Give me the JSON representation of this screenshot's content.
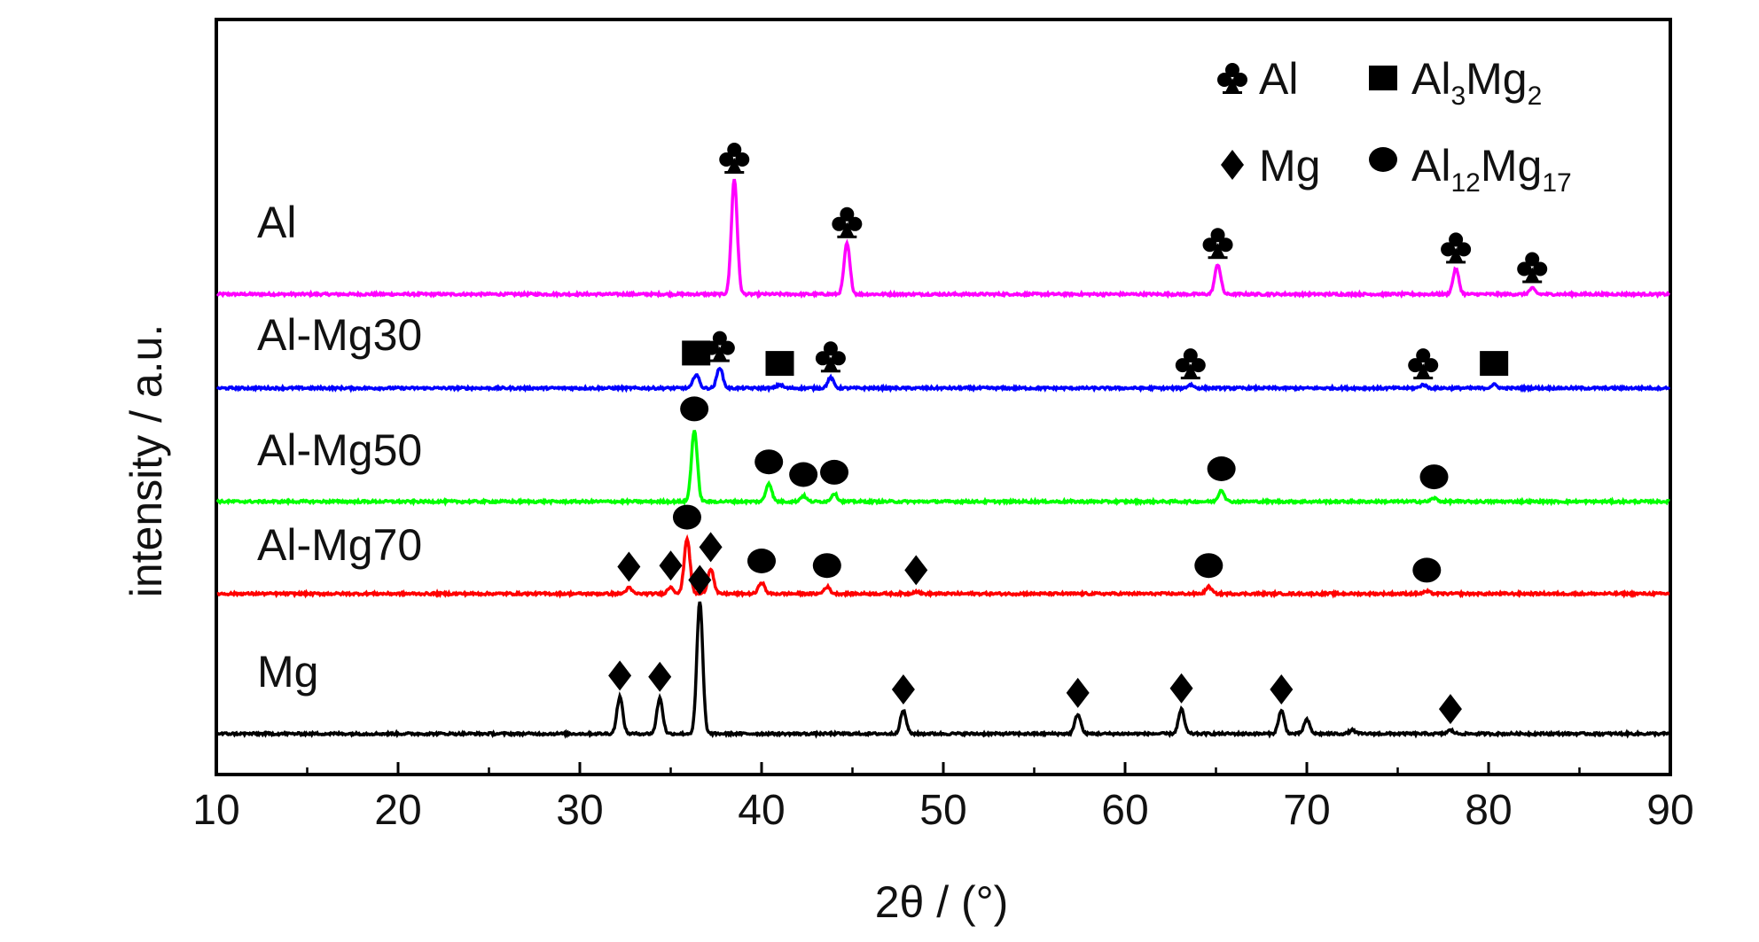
{
  "chart_data": {
    "type": "line",
    "xlabel": "2θ / (°)",
    "ylabel": "intensity / a.u.",
    "xlim": [
      10,
      90
    ],
    "xticks": [
      10,
      20,
      30,
      40,
      50,
      60,
      70,
      80,
      90
    ],
    "grid": false,
    "legend_position": "top-right",
    "legend": [
      {
        "symbol": "club",
        "label": "Al",
        "sub": ""
      },
      {
        "symbol": "square",
        "label": "Al",
        "sub_parts": [
          "3",
          "2"
        ],
        "label2": "Mg"
      },
      {
        "symbol": "diamond",
        "label": "Mg",
        "sub": ""
      },
      {
        "symbol": "circle",
        "label": "Al",
        "sub_parts": [
          "12",
          "17"
        ],
        "label2": "Mg"
      }
    ],
    "series": [
      {
        "name": "Al",
        "color": "#ff00ff",
        "peaks": [
          {
            "x": 38.5,
            "h": 1.0,
            "mark": "club"
          },
          {
            "x": 44.7,
            "h": 0.44,
            "mark": "club"
          },
          {
            "x": 65.1,
            "h": 0.26,
            "mark": "club"
          },
          {
            "x": 78.2,
            "h": 0.22,
            "mark": "club"
          },
          {
            "x": 82.4,
            "h": 0.05,
            "mark": "club"
          }
        ]
      },
      {
        "name": "Al-Mg30",
        "color": "#0000ff",
        "peaks": [
          {
            "x": 36.4,
            "h": 0.12,
            "mark": "square"
          },
          {
            "x": 37.7,
            "h": 0.18,
            "mark": "club"
          },
          {
            "x": 41.0,
            "h": 0.03,
            "mark": "square"
          },
          {
            "x": 43.8,
            "h": 0.09,
            "mark": "club"
          },
          {
            "x": 63.6,
            "h": 0.03,
            "mark": "club"
          },
          {
            "x": 76.4,
            "h": 0.03,
            "mark": "club"
          },
          {
            "x": 80.3,
            "h": 0.03,
            "mark": "square"
          }
        ]
      },
      {
        "name": "Al-Mg50",
        "color": "#00ff00",
        "peaks": [
          {
            "x": 36.3,
            "h": 0.62,
            "mark": "circle"
          },
          {
            "x": 40.4,
            "h": 0.16,
            "mark": "circle"
          },
          {
            "x": 42.3,
            "h": 0.05,
            "mark": "circle"
          },
          {
            "x": 44.0,
            "h": 0.07,
            "mark": "circle"
          },
          {
            "x": 65.3,
            "h": 0.1,
            "mark": "circle"
          },
          {
            "x": 77.0,
            "h": 0.03,
            "mark": "circle"
          }
        ]
      },
      {
        "name": "Al-Mg70",
        "color": "#ff0000",
        "peaks": [
          {
            "x": 32.7,
            "h": 0.05,
            "mark": "diamond"
          },
          {
            "x": 35.0,
            "h": 0.06,
            "mark": "diamond"
          },
          {
            "x": 35.9,
            "h": 0.48,
            "mark": "circle"
          },
          {
            "x": 37.2,
            "h": 0.22,
            "mark": "diamond"
          },
          {
            "x": 40.0,
            "h": 0.1,
            "mark": "circle"
          },
          {
            "x": 43.6,
            "h": 0.06,
            "mark": "circle"
          },
          {
            "x": 48.5,
            "h": 0.02,
            "mark": "diamond"
          },
          {
            "x": 64.6,
            "h": 0.06,
            "mark": "circle"
          },
          {
            "x": 76.6,
            "h": 0.02,
            "mark": "circle"
          }
        ]
      },
      {
        "name": "Mg",
        "color": "#000000",
        "peaks": [
          {
            "x": 32.2,
            "h": 0.32,
            "mark": "diamond"
          },
          {
            "x": 34.4,
            "h": 0.31,
            "mark": "diamond"
          },
          {
            "x": 36.6,
            "h": 1.15,
            "mark": "diamond"
          },
          {
            "x": 47.8,
            "h": 0.2,
            "mark": "diamond"
          },
          {
            "x": 57.4,
            "h": 0.17,
            "mark": "diamond"
          },
          {
            "x": 63.1,
            "h": 0.21,
            "mark": "diamond"
          },
          {
            "x": 68.6,
            "h": 0.2,
            "mark": "diamond"
          },
          {
            "x": 70.0,
            "h": 0.12,
            "mark": null
          },
          {
            "x": 72.5,
            "h": 0.03,
            "mark": null
          },
          {
            "x": 77.9,
            "h": 0.03,
            "mark": "diamond"
          }
        ]
      }
    ]
  }
}
